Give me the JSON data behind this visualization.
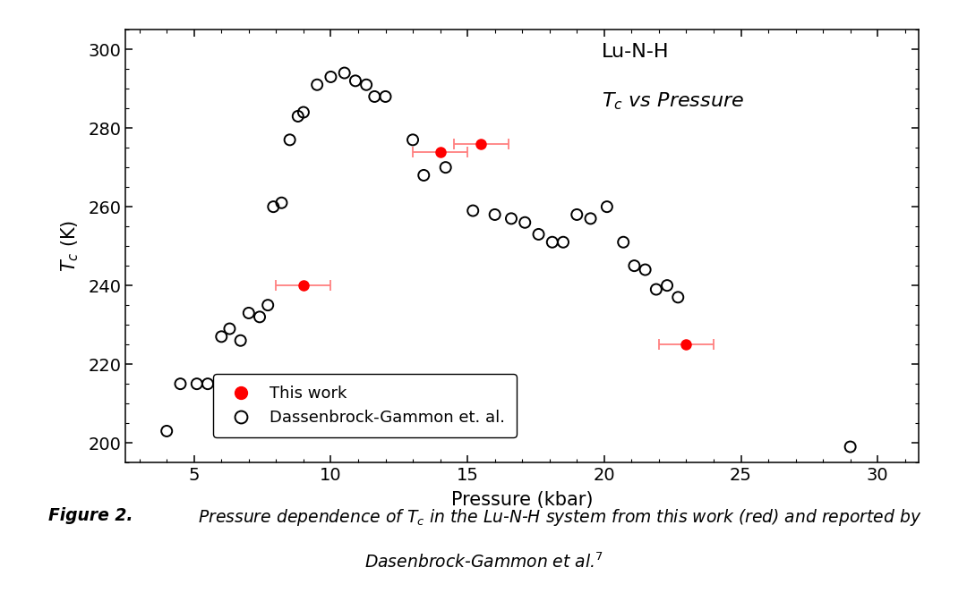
{
  "xlabel": "Pressure (kbar)",
  "ylabel": "$T_c$ (K)",
  "xlim": [
    2.5,
    31.5
  ],
  "ylim": [
    195,
    305
  ],
  "xticks": [
    5,
    10,
    15,
    20,
    25,
    30
  ],
  "yticks": [
    200,
    220,
    240,
    260,
    280,
    300
  ],
  "open_x": [
    4.0,
    4.5,
    5.1,
    5.5,
    6.0,
    6.3,
    6.7,
    7.0,
    7.4,
    7.7,
    7.9,
    8.2,
    8.5,
    8.8,
    9.0,
    9.5,
    10.0,
    10.5,
    10.9,
    11.3,
    11.6,
    12.0,
    13.0,
    13.4,
    14.2,
    15.2,
    16.0,
    16.6,
    17.1,
    17.6,
    18.1,
    18.5,
    19.0,
    19.5,
    20.1,
    20.7,
    21.1,
    21.5,
    21.9,
    22.3,
    22.7,
    29.0
  ],
  "open_y": [
    203,
    215,
    215,
    215,
    227,
    229,
    226,
    233,
    232,
    235,
    260,
    261,
    277,
    283,
    284,
    291,
    293,
    294,
    292,
    291,
    288,
    288,
    277,
    268,
    270,
    259,
    258,
    257,
    256,
    253,
    251,
    251,
    258,
    257,
    260,
    251,
    245,
    244,
    239,
    240,
    237,
    199
  ],
  "red_x": [
    9.0,
    14.0,
    15.5,
    23.0
  ],
  "red_y": [
    240,
    274,
    276,
    225
  ],
  "red_xerr": [
    1.0,
    1.0,
    1.0,
    1.0
  ],
  "legend_label_red": "This work",
  "legend_label_open": "Dassenbrock-Gammon et. al.",
  "annot_line1": "Lu-N-H",
  "annot_line2": "$T_c$ vs Pressure",
  "background_color": "#ffffff"
}
